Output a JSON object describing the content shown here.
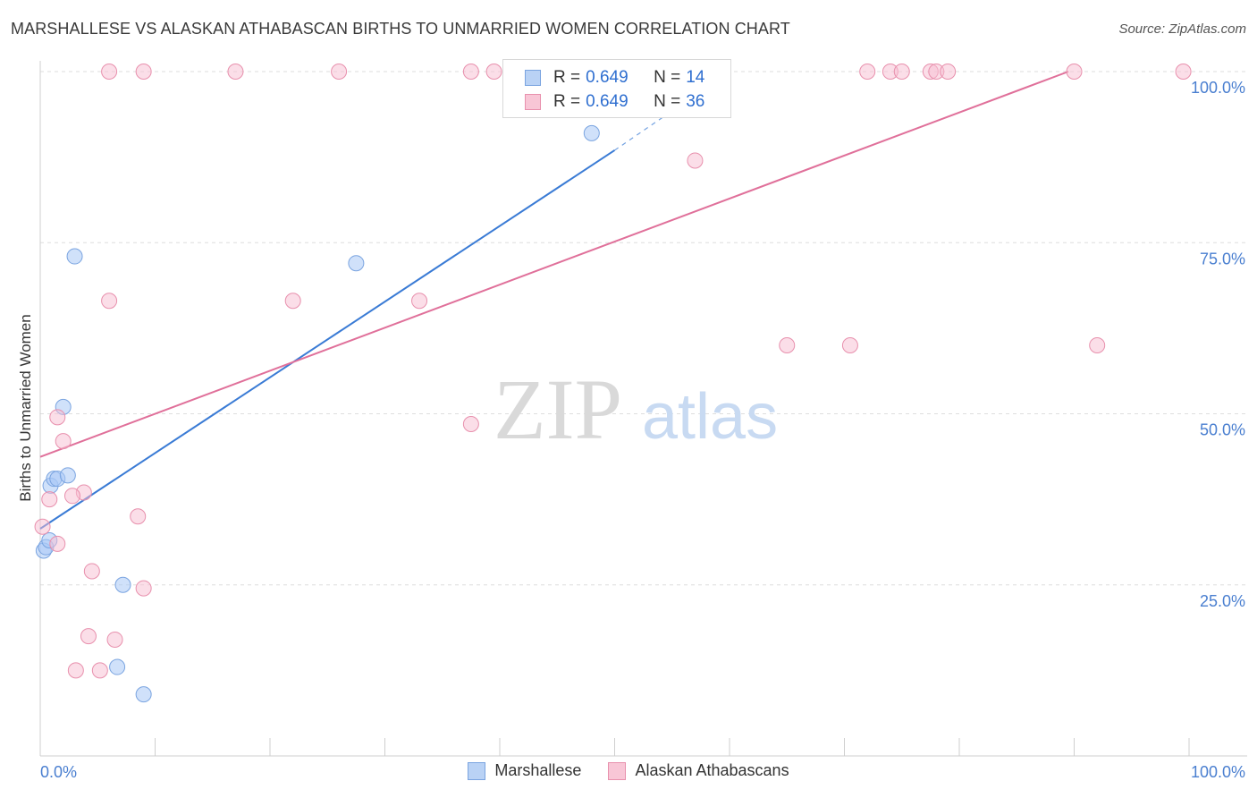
{
  "title": "MARSHALLESE VS ALASKAN ATHABASCAN BIRTHS TO UNMARRIED WOMEN CORRELATION CHART",
  "source": "Source: ZipAtlas.com",
  "watermark": {
    "zip": "ZIP",
    "atlas": "atlas"
  },
  "legend": {
    "r_label": "R =",
    "n_label": "N =",
    "rows": [
      {
        "r": "0.649",
        "n": "14",
        "fill": "#b9d2f5",
        "stroke": "#7aa4e0"
      },
      {
        "r": "0.649",
        "n": "36",
        "fill": "#f8c6d6",
        "stroke": "#e890ad"
      }
    ]
  },
  "bottom_legend": [
    {
      "label": "Marshallese",
      "fill": "#b9d2f5",
      "stroke": "#7aa4e0"
    },
    {
      "label": "Alaskan Athabascans",
      "fill": "#f8c6d6",
      "stroke": "#e890ad"
    }
  ],
  "chart_data": {
    "type": "scatter",
    "title": "MARSHALLESE VS ALASKAN ATHABASCAN BIRTHS TO UNMARRIED WOMEN CORRELATION CHART",
    "xlabel": "",
    "ylabel": "Births to Unmarried Women",
    "xlim": [
      0,
      100
    ],
    "ylim": [
      0,
      100
    ],
    "x_tick_labels": [
      "0.0%",
      "100.0%"
    ],
    "y_ticks": [
      25,
      50,
      75,
      100
    ],
    "y_tick_labels": [
      "25.0%",
      "50.0%",
      "75.0%",
      "100.0%"
    ],
    "series": [
      {
        "name": "Marshallese",
        "color": "#3a7bd5",
        "fill": "rgba(170,200,245,0.55)",
        "stroke": "#7aa4e0",
        "points": [
          [
            0.3,
            30
          ],
          [
            0.5,
            30.5
          ],
          [
            0.8,
            31.5
          ],
          [
            0.9,
            39.5
          ],
          [
            1.2,
            40.5
          ],
          [
            1.5,
            40.5
          ],
          [
            2.4,
            41
          ],
          [
            2.0,
            51
          ],
          [
            3.0,
            73
          ],
          [
            7.2,
            25
          ],
          [
            6.7,
            13
          ],
          [
            9.0,
            9
          ],
          [
            27.5,
            72
          ],
          [
            48.0,
            91
          ]
        ],
        "trend": {
          "x0": 0,
          "y0": 33.2,
          "x1": 50,
          "y1": 88.5,
          "dash_to_x": 60,
          "dash_to_y": 100
        }
      },
      {
        "name": "Alaskan Athabascans",
        "color": "#e0709a",
        "fill": "rgba(248,190,210,0.5)",
        "stroke": "#e890ad",
        "points": [
          [
            0.2,
            33.5
          ],
          [
            0.8,
            37.5
          ],
          [
            1.5,
            31
          ],
          [
            1.5,
            49.5
          ],
          [
            2.0,
            46
          ],
          [
            3.8,
            38.5
          ],
          [
            2.8,
            38
          ],
          [
            4.5,
            27
          ],
          [
            4.2,
            17.5
          ],
          [
            6.5,
            17
          ],
          [
            3.1,
            12.5
          ],
          [
            5.2,
            12.5
          ],
          [
            8.5,
            35
          ],
          [
            9.0,
            24.5
          ],
          [
            6.0,
            100
          ],
          [
            9.0,
            100
          ],
          [
            17.0,
            100
          ],
          [
            26.0,
            100
          ],
          [
            6.0,
            66.5
          ],
          [
            22.0,
            66.5
          ],
          [
            33.0,
            66.5
          ],
          [
            37.5,
            48.5
          ],
          [
            37.5,
            100
          ],
          [
            39.5,
            100
          ],
          [
            57.0,
            87
          ],
          [
            65.0,
            60
          ],
          [
            70.5,
            60
          ],
          [
            72.0,
            100
          ],
          [
            74.0,
            100
          ],
          [
            75.0,
            100
          ],
          [
            77.5,
            100
          ],
          [
            78.0,
            100
          ],
          [
            79.0,
            100
          ],
          [
            90.0,
            100
          ],
          [
            92.0,
            60
          ],
          [
            99.5,
            100
          ]
        ],
        "trend": {
          "x0": 0,
          "y0": 43.7,
          "x1": 89.5,
          "y1": 100
        }
      }
    ]
  }
}
